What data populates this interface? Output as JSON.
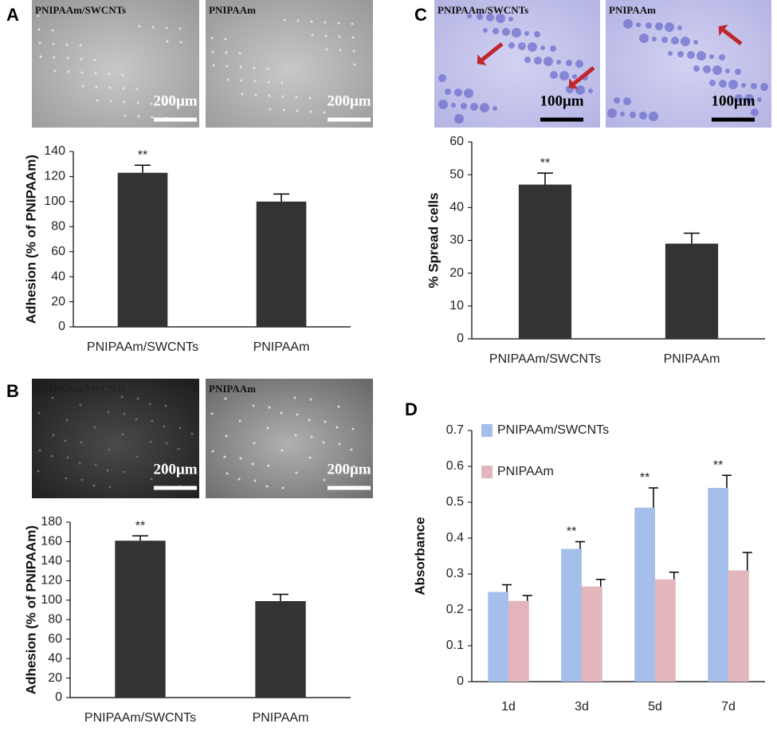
{
  "chart_data": [
    {
      "type": "bar",
      "panel": "A",
      "y_label": "Adhesion (% of PNIPAAm)",
      "categories": [
        "PNIPAAm/SWCNTs",
        "PNIPAAm"
      ],
      "values": [
        123,
        100
      ],
      "errors": [
        6,
        6
      ],
      "significance": [
        "**",
        null
      ],
      "color": "#333333",
      "ylim": [
        0,
        140
      ],
      "yticks": [
        0,
        20,
        40,
        60,
        80,
        100,
        120,
        140
      ]
    },
    {
      "type": "bar",
      "panel": "B",
      "y_label": "Adhesion (% of PNIPAAm)",
      "categories": [
        "PNIPAAm/SWCNTs",
        "PNIPAAm"
      ],
      "values": [
        161,
        99
      ],
      "errors": [
        5,
        7
      ],
      "significance": [
        "**",
        null
      ],
      "color": "#333333",
      "ylim": [
        0,
        180
      ],
      "yticks": [
        0,
        20,
        40,
        60,
        80,
        100,
        120,
        140,
        160,
        180
      ]
    },
    {
      "type": "bar",
      "panel": "C",
      "y_label": "% Spread cells",
      "categories": [
        "PNIPAAm/SWCNTs",
        "PNIPAAm"
      ],
      "values": [
        47,
        29
      ],
      "errors": [
        3.5,
        3.2
      ],
      "significance": [
        "**",
        null
      ],
      "color": "#333333",
      "ylim": [
        0,
        60
      ],
      "yticks": [
        0,
        10,
        20,
        30,
        40,
        50,
        60
      ]
    },
    {
      "type": "grouped_bar",
      "panel": "D",
      "y_label": "Absorbance",
      "categories": [
        "1d",
        "3d",
        "5d",
        "7d"
      ],
      "series": [
        {
          "name": "PNIPAAm/SWCNTs",
          "color": "#a6bfea",
          "values": [
            0.25,
            0.37,
            0.485,
            0.54
          ],
          "errors": [
            0.02,
            0.02,
            0.055,
            0.035
          ],
          "significance": [
            null,
            "**",
            "**",
            "**"
          ]
        },
        {
          "name": "PNIPAAm",
          "color": "#e2b6bb",
          "values": [
            0.225,
            0.265,
            0.285,
            0.31
          ],
          "errors": [
            0.015,
            0.02,
            0.02,
            0.05
          ]
        }
      ],
      "ylim": [
        0,
        0.7
      ],
      "yticks": [
        0,
        0.1,
        0.2,
        0.3,
        0.4,
        0.5,
        0.6,
        0.7
      ]
    }
  ],
  "images": [
    {
      "caption": "PNIPAAm/SWCNTs",
      "scale": "200μm"
    },
    {
      "caption": "PNIPAAm",
      "scale": "200μm"
    },
    {
      "caption": "PNIPAAm/SWCNTs",
      "scale": "200μm"
    },
    {
      "caption": "PNIPAAm",
      "scale": "200μm"
    },
    {
      "caption": "PNIPAAm/SWCNTs",
      "scale": "100μm"
    },
    {
      "caption": "PNIPAAm",
      "scale": "100μm"
    }
  ]
}
